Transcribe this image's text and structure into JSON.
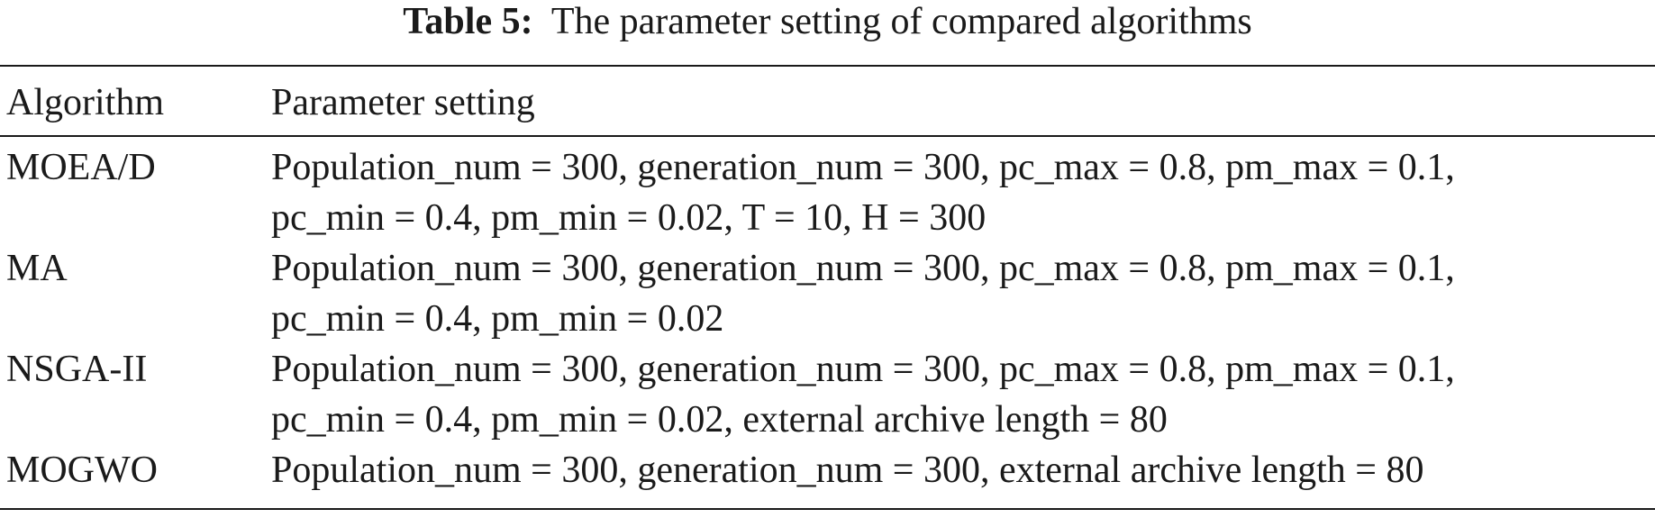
{
  "table": {
    "caption_label": "Table 5:",
    "caption_text": "The parameter setting of compared algorithms",
    "headers": [
      "Algorithm",
      "Parameter setting"
    ],
    "rows": [
      {
        "algorithm": "MOEA/D",
        "lines": [
          "Population_num = 300, generation_num = 300, pc_max = 0.8, pm_max = 0.1,",
          "pc_min = 0.4, pm_min = 0.02, T = 10, H = 300"
        ]
      },
      {
        "algorithm": "MA",
        "lines": [
          "Population_num = 300, generation_num = 300, pc_max = 0.8, pm_max = 0.1,",
          "pc_min = 0.4, pm_min = 0.02"
        ]
      },
      {
        "algorithm": "NSGA-II",
        "lines": [
          "Population_num = 300, generation_num = 300, pc_max = 0.8, pm_max = 0.1,",
          "pc_min = 0.4, pm_min = 0.02, external archive length = 80"
        ]
      },
      {
        "algorithm": "MOGWO",
        "lines": [
          "Population_num = 300, generation_num = 300, external archive length = 80"
        ]
      }
    ]
  }
}
